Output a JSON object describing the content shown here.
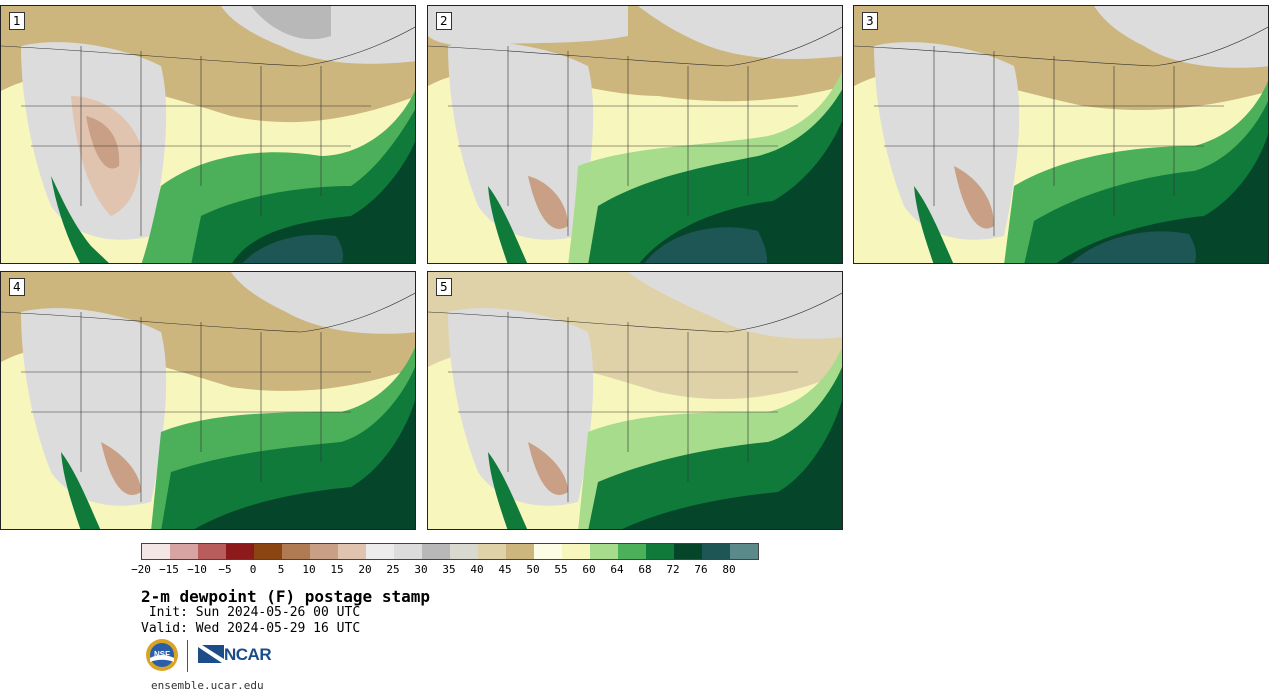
{
  "panels": [
    {
      "label": "1"
    },
    {
      "label": "2"
    },
    {
      "label": "3"
    },
    {
      "label": "4"
    },
    {
      "label": "5"
    }
  ],
  "colorbar": {
    "colors": [
      "#f5e6e6",
      "#d8a3a3",
      "#b85c5c",
      "#8c1a1a",
      "#8b4513",
      "#b07a52",
      "#c9a085",
      "#e0c4b0",
      "#ececec",
      "#dcdcdc",
      "#b8b8b8",
      "#d9d9cf",
      "#e0d2a8",
      "#cdb57e",
      "#fdfde6",
      "#f7f7bd",
      "#a6dc8c",
      "#4caf5a",
      "#0f7a3a",
      "#05452a",
      "#1e5555",
      "#5a8a8a"
    ],
    "ticks": [
      "-20",
      "-15",
      "-10",
      "-5",
      "0",
      "5",
      "10",
      "15",
      "20",
      "25",
      "30",
      "35",
      "40",
      "45",
      "50",
      "55",
      "60",
      "64",
      "68",
      "72",
      "76",
      "80"
    ]
  },
  "title": "2-m dewpoint (F) postage stamp",
  "init": " Init: Sun 2024-05-26 00 UTC",
  "valid": "Valid: Wed 2024-05-29 16 UTC",
  "logos": {
    "nsf": "NSF",
    "ncar": "NCAR"
  },
  "site": "ensemble.ucar.edu"
}
